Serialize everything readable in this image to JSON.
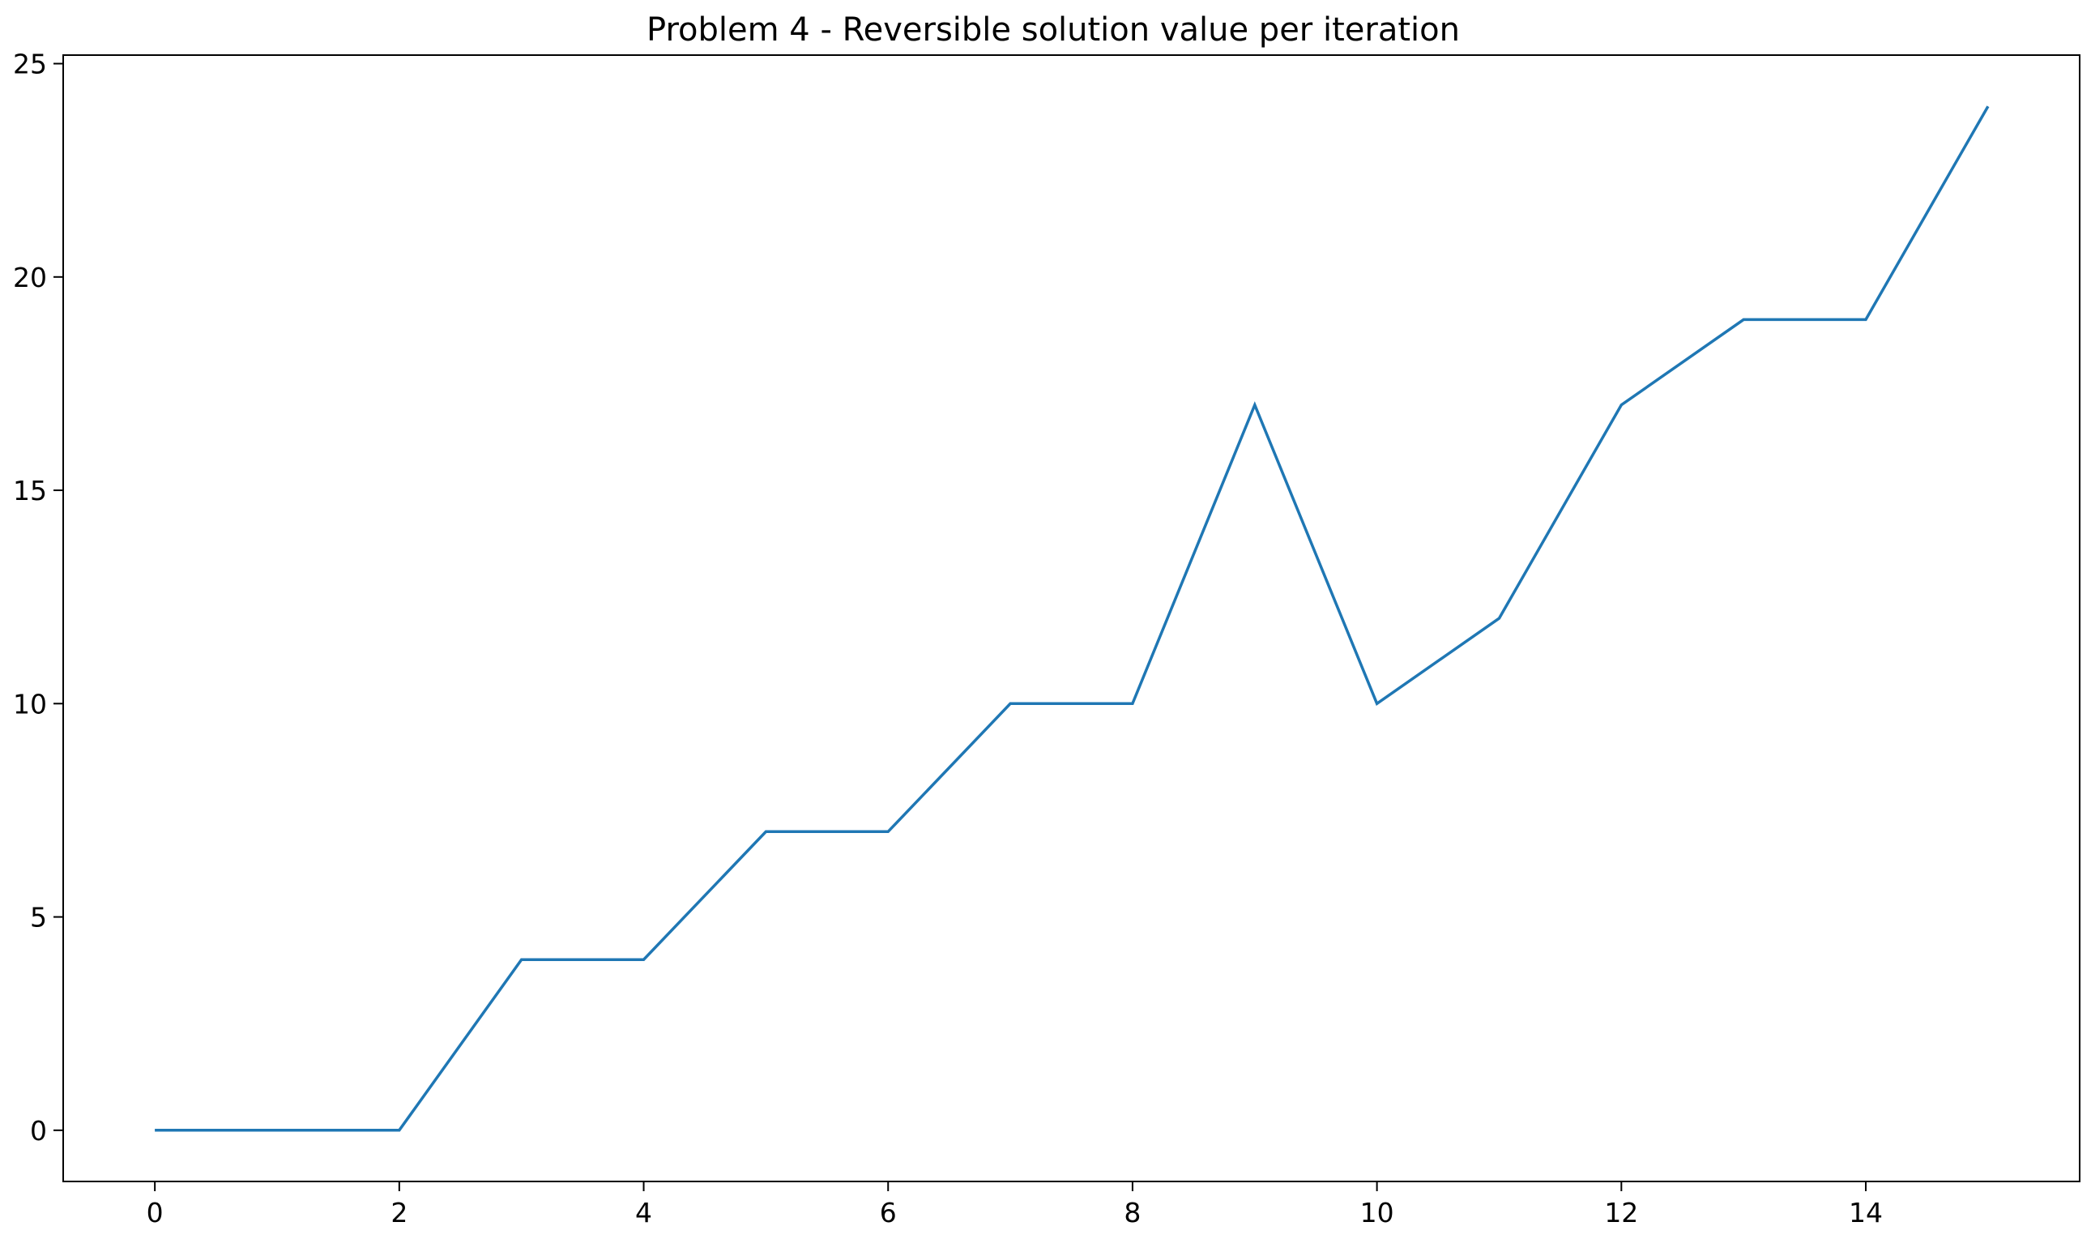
{
  "chart_data": {
    "type": "line",
    "title": "Problem 4 - Reversible solution value per iteration",
    "xlabel": "",
    "ylabel": "",
    "x": [
      0,
      1,
      2,
      3,
      4,
      5,
      6,
      7,
      8,
      9,
      10,
      11,
      12,
      13,
      14,
      15
    ],
    "series": [
      {
        "values": [
          0,
          0,
          0,
          4,
          4,
          7,
          7,
          10,
          10,
          17,
          10,
          12,
          17,
          19,
          19,
          24
        ],
        "color": "#1f77b4"
      }
    ],
    "xlim": [
      -0.75,
      15.75
    ],
    "ylim": [
      -1.2,
      25.2
    ],
    "xticks": [
      0,
      2,
      4,
      6,
      8,
      10,
      12,
      14
    ],
    "yticks": [
      0,
      5,
      10,
      15,
      20,
      25
    ],
    "xtick_labels": [
      "0",
      "2",
      "4",
      "6",
      "8",
      "10",
      "12",
      "14"
    ],
    "ytick_labels": [
      "0",
      "5",
      "10",
      "15",
      "20",
      "25"
    ],
    "grid": false,
    "legend": "none"
  }
}
